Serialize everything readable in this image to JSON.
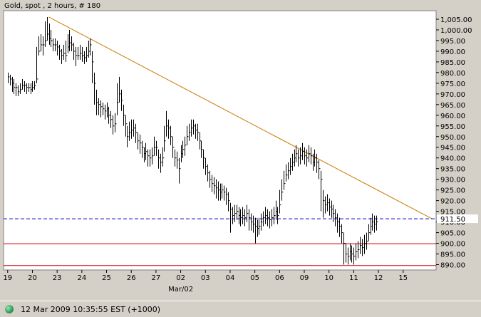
{
  "title": "Gold, spot , 2 hours, # 180",
  "status": {
    "indicator_icon": "green-circle-icon",
    "text": "12 Mar 2009 10:35:55  EST (+1000)"
  },
  "colors": {
    "price_bars": "#000000",
    "trendline": "#cc7a00",
    "horizontal_dashed": "#0000cc",
    "horizontal_solid": "#cc0000",
    "plot_background": "#ffffff",
    "frame_background": "#d4d0c8",
    "status_indicator": "#2e9a57"
  },
  "chart_data": {
    "type": "ohlc",
    "title": "Gold, spot , 2 hours, # 180",
    "y_axis": {
      "position": "right",
      "ylim": [
        887.5,
        1009
      ],
      "ticks": [
        "1,005.00",
        "1,000.00",
        "995.00",
        "990.00",
        "985.00",
        "980.00",
        "975.00",
        "970.00",
        "965.00",
        "960.00",
        "955.00",
        "950.00",
        "945.00",
        "940.00",
        "935.00",
        "930.00",
        "925.00",
        "920.00",
        "915.00",
        "910.00",
        "905.00",
        "900.00",
        "895.00",
        "890.00"
      ],
      "tick_values": [
        1005,
        1000,
        995,
        990,
        985,
        980,
        975,
        970,
        965,
        960,
        955,
        950,
        945,
        940,
        935,
        930,
        925,
        920,
        915,
        910,
        905,
        900,
        895,
        890
      ],
      "highlight_label": "911.50",
      "highlight_value": 911.5
    },
    "x_axis": {
      "tick_labels": [
        "19",
        "20",
        "23",
        "24",
        "25",
        "26",
        "27",
        "02",
        "03",
        "04",
        "05",
        "06",
        "09",
        "10",
        "11",
        "12",
        "15"
      ],
      "tick_positions": [
        0,
        3,
        6,
        9,
        12,
        15,
        18,
        21,
        24,
        27,
        30,
        33,
        36,
        39,
        42,
        45,
        48
      ],
      "sub_label": "Mar/02",
      "sub_label_under": "02",
      "xlim": [
        -0.5,
        52
      ]
    },
    "grid": false,
    "horizontal_lines": [
      {
        "value": 911.5,
        "style": "dashed",
        "color": "#0000cc"
      },
      {
        "value": 899.8,
        "style": "solid",
        "color": "#cc0000"
      },
      {
        "value": 889.6,
        "style": "solid",
        "color": "#cc0000"
      }
    ],
    "trendline": {
      "x0": 5.0,
      "y0": 1006.0,
      "x1": 51.5,
      "y1": 911.5,
      "color": "#cc7a00"
    },
    "bar_width_units": 0.25,
    "bars": [
      [
        0.0,
        978,
        980,
        975
      ],
      [
        0.25,
        977,
        979,
        974
      ],
      [
        0.5,
        975,
        978,
        971
      ],
      [
        0.75,
        973,
        977,
        970
      ],
      [
        1.0,
        973,
        975,
        969
      ],
      [
        1.25,
        971,
        974,
        969
      ],
      [
        1.5,
        972,
        975,
        970
      ],
      [
        1.75,
        974,
        977,
        972
      ],
      [
        2.0,
        974,
        976,
        971
      ],
      [
        2.25,
        973,
        975,
        970
      ],
      [
        2.5,
        973,
        975,
        971
      ],
      [
        2.75,
        972,
        975,
        970
      ],
      [
        3.0,
        973,
        976,
        971
      ],
      [
        3.25,
        974,
        976,
        972
      ],
      [
        3.5,
        977,
        992,
        975
      ],
      [
        3.75,
        990,
        997,
        988
      ],
      [
        4.0,
        993,
        998,
        990
      ],
      [
        4.25,
        993,
        997,
        988
      ],
      [
        4.5,
        995,
        1004,
        992
      ],
      [
        4.75,
        998,
        1006,
        995
      ],
      [
        5.0,
        996,
        1003,
        993
      ],
      [
        5.25,
        995,
        1000,
        992
      ],
      [
        5.5,
        993,
        996,
        990
      ],
      [
        5.75,
        993,
        996,
        990
      ],
      [
        6.0,
        992,
        995,
        988
      ],
      [
        6.25,
        990,
        993,
        986
      ],
      [
        6.5,
        988,
        991,
        984
      ],
      [
        6.75,
        989,
        993,
        986
      ],
      [
        7.0,
        988,
        995,
        985
      ],
      [
        7.25,
        992,
        998,
        989
      ],
      [
        7.5,
        994,
        1000,
        990
      ],
      [
        7.75,
        993,
        997,
        990
      ],
      [
        8.0,
        990,
        994,
        986
      ],
      [
        8.25,
        988,
        992,
        983
      ],
      [
        8.5,
        988,
        992,
        986
      ],
      [
        8.75,
        989,
        993,
        986
      ],
      [
        9.0,
        988,
        992,
        985
      ],
      [
        9.25,
        987,
        990,
        984
      ],
      [
        9.5,
        988,
        992,
        985
      ],
      [
        9.75,
        990,
        995,
        987
      ],
      [
        10.0,
        993,
        996,
        988
      ],
      [
        10.25,
        985,
        990,
        975
      ],
      [
        10.5,
        975,
        980,
        965
      ],
      [
        10.75,
        966,
        972,
        960
      ],
      [
        11.0,
        965,
        968,
        960
      ],
      [
        11.25,
        964,
        967,
        959
      ],
      [
        11.5,
        963,
        966,
        960
      ],
      [
        11.75,
        962,
        965,
        958
      ],
      [
        12.0,
        963,
        966,
        959
      ],
      [
        12.25,
        960,
        964,
        956
      ],
      [
        12.5,
        958,
        962,
        954
      ],
      [
        12.75,
        955,
        960,
        951
      ],
      [
        13.0,
        956,
        961,
        952
      ],
      [
        13.25,
        966,
        975,
        960
      ],
      [
        13.5,
        970,
        978,
        966
      ],
      [
        13.75,
        967,
        972,
        962
      ],
      [
        14.0,
        960,
        965,
        955
      ],
      [
        14.25,
        956,
        960,
        950
      ],
      [
        14.5,
        950,
        955,
        945
      ],
      [
        14.75,
        952,
        957,
        948
      ],
      [
        15.0,
        953,
        958,
        949
      ],
      [
        15.25,
        954,
        958,
        950
      ],
      [
        15.5,
        952,
        956,
        947
      ],
      [
        15.75,
        948,
        952,
        944
      ],
      [
        16.0,
        947,
        951,
        942
      ],
      [
        16.25,
        945,
        948,
        940
      ],
      [
        16.5,
        942,
        945,
        938
      ],
      [
        16.75,
        943,
        947,
        939
      ],
      [
        17.0,
        941,
        944,
        936
      ],
      [
        17.25,
        940,
        944,
        936
      ],
      [
        17.5,
        941,
        945,
        937
      ],
      [
        17.75,
        945,
        950,
        941
      ],
      [
        18.0,
        945,
        948,
        941
      ],
      [
        18.25,
        940,
        944,
        935
      ],
      [
        18.5,
        938,
        942,
        933
      ],
      [
        18.75,
        940,
        945,
        936
      ],
      [
        19.0,
        948,
        955,
        943
      ],
      [
        19.25,
        955,
        962,
        950
      ],
      [
        19.5,
        954,
        958,
        949
      ],
      [
        19.75,
        950,
        955,
        946
      ],
      [
        20.0,
        945,
        950,
        940
      ],
      [
        20.25,
        940,
        944,
        936
      ],
      [
        20.5,
        939,
        943,
        935
      ],
      [
        20.75,
        935,
        940,
        928
      ],
      [
        21.0,
        942,
        946,
        938
      ],
      [
        21.25,
        944,
        948,
        940
      ],
      [
        21.5,
        946,
        950,
        941
      ],
      [
        21.75,
        950,
        955,
        946
      ],
      [
        22.0,
        952,
        956,
        948
      ],
      [
        22.25,
        954,
        958,
        950
      ],
      [
        22.5,
        955,
        958,
        951
      ],
      [
        22.75,
        953,
        956,
        949
      ],
      [
        23.0,
        952,
        956,
        948
      ],
      [
        23.25,
        948,
        952,
        944
      ],
      [
        23.5,
        944,
        948,
        940
      ],
      [
        23.75,
        940,
        944,
        935
      ],
      [
        24.0,
        936,
        940,
        932
      ],
      [
        24.25,
        933,
        937,
        929
      ],
      [
        24.5,
        930,
        934,
        926
      ],
      [
        24.75,
        928,
        932,
        924
      ],
      [
        25.0,
        927,
        931,
        923
      ],
      [
        25.25,
        926,
        930,
        921
      ],
      [
        25.5,
        925,
        929,
        920
      ],
      [
        25.75,
        924,
        928,
        920
      ],
      [
        26.0,
        925,
        928,
        921
      ],
      [
        26.25,
        924,
        927,
        920
      ],
      [
        26.5,
        923,
        926,
        918
      ],
      [
        26.75,
        920,
        924,
        915
      ],
      [
        27.0,
        916,
        919,
        905
      ],
      [
        27.25,
        913,
        917,
        909
      ],
      [
        27.5,
        914,
        918,
        910
      ],
      [
        27.75,
        915,
        918,
        911
      ],
      [
        28.0,
        913,
        917,
        909
      ],
      [
        28.25,
        912,
        916,
        908
      ],
      [
        28.5,
        913,
        917,
        909
      ],
      [
        28.75,
        912,
        916,
        908
      ],
      [
        29.0,
        914,
        918,
        910
      ],
      [
        29.25,
        912,
        916,
        906
      ],
      [
        29.5,
        910,
        914,
        906
      ],
      [
        29.75,
        909,
        913,
        905
      ],
      [
        30.0,
        908,
        912,
        900
      ],
      [
        30.25,
        907,
        911,
        903
      ],
      [
        30.5,
        908,
        912,
        904
      ],
      [
        30.75,
        910,
        914,
        906
      ],
      [
        31.0,
        912,
        915,
        908
      ],
      [
        31.25,
        913,
        917,
        909
      ],
      [
        31.5,
        912,
        916,
        908
      ],
      [
        31.75,
        911,
        915,
        907
      ],
      [
        32.0,
        912,
        916,
        908
      ],
      [
        32.25,
        913,
        917,
        909
      ],
      [
        32.5,
        915,
        920,
        911
      ],
      [
        32.75,
        913,
        917,
        909
      ],
      [
        33.0,
        918,
        925,
        914
      ],
      [
        33.25,
        924,
        930,
        920
      ],
      [
        33.5,
        928,
        934,
        925
      ],
      [
        33.75,
        932,
        937,
        929
      ],
      [
        34.0,
        934,
        938,
        930
      ],
      [
        34.25,
        936,
        940,
        932
      ],
      [
        34.5,
        938,
        942,
        934
      ],
      [
        34.75,
        940,
        944,
        936
      ],
      [
        35.0,
        942,
        946,
        938
      ],
      [
        35.25,
        940,
        944,
        936
      ],
      [
        35.5,
        941,
        945,
        937
      ],
      [
        35.75,
        943,
        947,
        939
      ],
      [
        36.0,
        941,
        945,
        937
      ],
      [
        36.25,
        940,
        944,
        936
      ],
      [
        36.5,
        942,
        946,
        938
      ],
      [
        36.75,
        941,
        945,
        937
      ],
      [
        37.0,
        938,
        942,
        934
      ],
      [
        37.25,
        940,
        944,
        936
      ],
      [
        37.5,
        938,
        942,
        933
      ],
      [
        37.75,
        935,
        939,
        930
      ],
      [
        38.0,
        930,
        934,
        915
      ],
      [
        38.25,
        920,
        925,
        912
      ],
      [
        38.5,
        918,
        922,
        914
      ],
      [
        38.75,
        919,
        923,
        915
      ],
      [
        39.0,
        917,
        921,
        913
      ],
      [
        39.25,
        916,
        920,
        912
      ],
      [
        39.5,
        914,
        918,
        910
      ],
      [
        39.75,
        912,
        916,
        908
      ],
      [
        40.0,
        910,
        914,
        905
      ],
      [
        40.25,
        908,
        912,
        903
      ],
      [
        40.5,
        905,
        909,
        900
      ],
      [
        40.75,
        900,
        905,
        890
      ],
      [
        41.0,
        895,
        900,
        891
      ],
      [
        41.25,
        894,
        898,
        890
      ],
      [
        41.5,
        896,
        900,
        892
      ],
      [
        41.75,
        895,
        899,
        891
      ],
      [
        42.0,
        894,
        898,
        890
      ],
      [
        42.25,
        896,
        900,
        892
      ],
      [
        42.5,
        897,
        901,
        893
      ],
      [
        42.75,
        899,
        903,
        895
      ],
      [
        43.0,
        898,
        902,
        894
      ],
      [
        43.25,
        900,
        904,
        895
      ],
      [
        43.5,
        901,
        905,
        897
      ],
      [
        43.75,
        905,
        909,
        901
      ],
      [
        44.0,
        908,
        912,
        904
      ],
      [
        44.25,
        910,
        914,
        906
      ],
      [
        44.5,
        909,
        913,
        905
      ],
      [
        44.75,
        910,
        913,
        906
      ]
    ]
  }
}
